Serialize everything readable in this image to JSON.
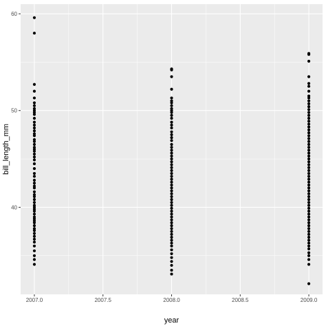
{
  "chart_data": {
    "type": "scatter",
    "title": "",
    "xlabel": "year",
    "ylabel": "bill_length_mm",
    "xlim": [
      2006.9,
      2009.1
    ],
    "ylim": [
      31.0,
      61.0
    ],
    "x_ticks": [
      2007.0,
      2007.5,
      2008.0,
      2008.5,
      2009.0
    ],
    "x_tick_labels": [
      "2007.0",
      "2007.5",
      "2008.0",
      "2008.5",
      "2009.0"
    ],
    "y_ticks": [
      40,
      50,
      60
    ],
    "y_tick_labels": [
      "40",
      "50",
      "60"
    ],
    "grid": true,
    "background": "#ebebeb",
    "point_color": "#000000",
    "series": [
      {
        "x_value": 2007.0,
        "values": [
          59.6,
          58.0,
          52.7,
          52.0,
          51.3,
          50.8,
          50.5,
          50.2,
          50.0,
          49.8,
          49.6,
          49.2,
          48.8,
          48.5,
          48.2,
          47.9,
          47.6,
          47.4,
          47.0,
          46.8,
          46.5,
          46.2,
          46.0,
          45.8,
          45.5,
          45.2,
          44.9,
          44.5,
          44.0,
          43.5,
          43.2,
          42.8,
          42.5,
          42.2,
          42.0,
          41.6,
          41.3,
          41.1,
          40.8,
          40.5,
          40.2,
          40.0,
          39.8,
          39.6,
          39.3,
          39.0,
          38.8,
          38.6,
          38.4,
          38.1,
          37.8,
          37.6,
          37.3,
          37.0,
          36.7,
          36.4,
          36.0,
          35.5,
          35.0,
          34.6,
          34.1
        ]
      },
      {
        "x_value": 2008.0,
        "values": [
          54.3,
          54.2,
          53.5,
          52.2,
          51.3,
          51.0,
          50.8,
          50.5,
          50.2,
          50.0,
          49.8,
          49.5,
          49.2,
          48.8,
          48.5,
          48.2,
          47.8,
          47.5,
          47.2,
          46.9,
          46.5,
          46.2,
          45.9,
          45.6,
          45.3,
          45.0,
          44.7,
          44.4,
          44.1,
          43.8,
          43.5,
          43.2,
          42.9,
          42.6,
          42.3,
          42.0,
          41.7,
          41.4,
          41.1,
          40.8,
          40.5,
          40.2,
          39.9,
          39.6,
          39.3,
          39.0,
          38.7,
          38.4,
          38.1,
          37.8,
          37.5,
          37.2,
          36.9,
          36.6,
          36.3,
          36.0,
          35.6,
          35.2,
          34.8,
          34.4,
          34.0,
          33.5,
          33.1
        ]
      },
      {
        "x_value": 2009.0,
        "values": [
          55.9,
          55.8,
          55.1,
          53.5,
          52.8,
          52.5,
          52.0,
          51.5,
          51.3,
          51.0,
          50.7,
          50.4,
          50.1,
          49.8,
          49.5,
          49.2,
          48.9,
          48.6,
          48.3,
          48.0,
          47.7,
          47.4,
          47.1,
          46.8,
          46.5,
          46.2,
          45.9,
          45.6,
          45.3,
          45.0,
          44.7,
          44.4,
          44.1,
          43.8,
          43.5,
          43.2,
          42.9,
          42.6,
          42.3,
          42.0,
          41.7,
          41.4,
          41.1,
          40.8,
          40.5,
          40.2,
          39.9,
          39.6,
          39.3,
          39.0,
          38.7,
          38.4,
          38.1,
          37.8,
          37.5,
          37.2,
          36.9,
          36.6,
          36.3,
          36.0,
          35.7,
          35.3,
          35.0,
          34.6,
          34.1,
          32.1
        ]
      }
    ]
  }
}
